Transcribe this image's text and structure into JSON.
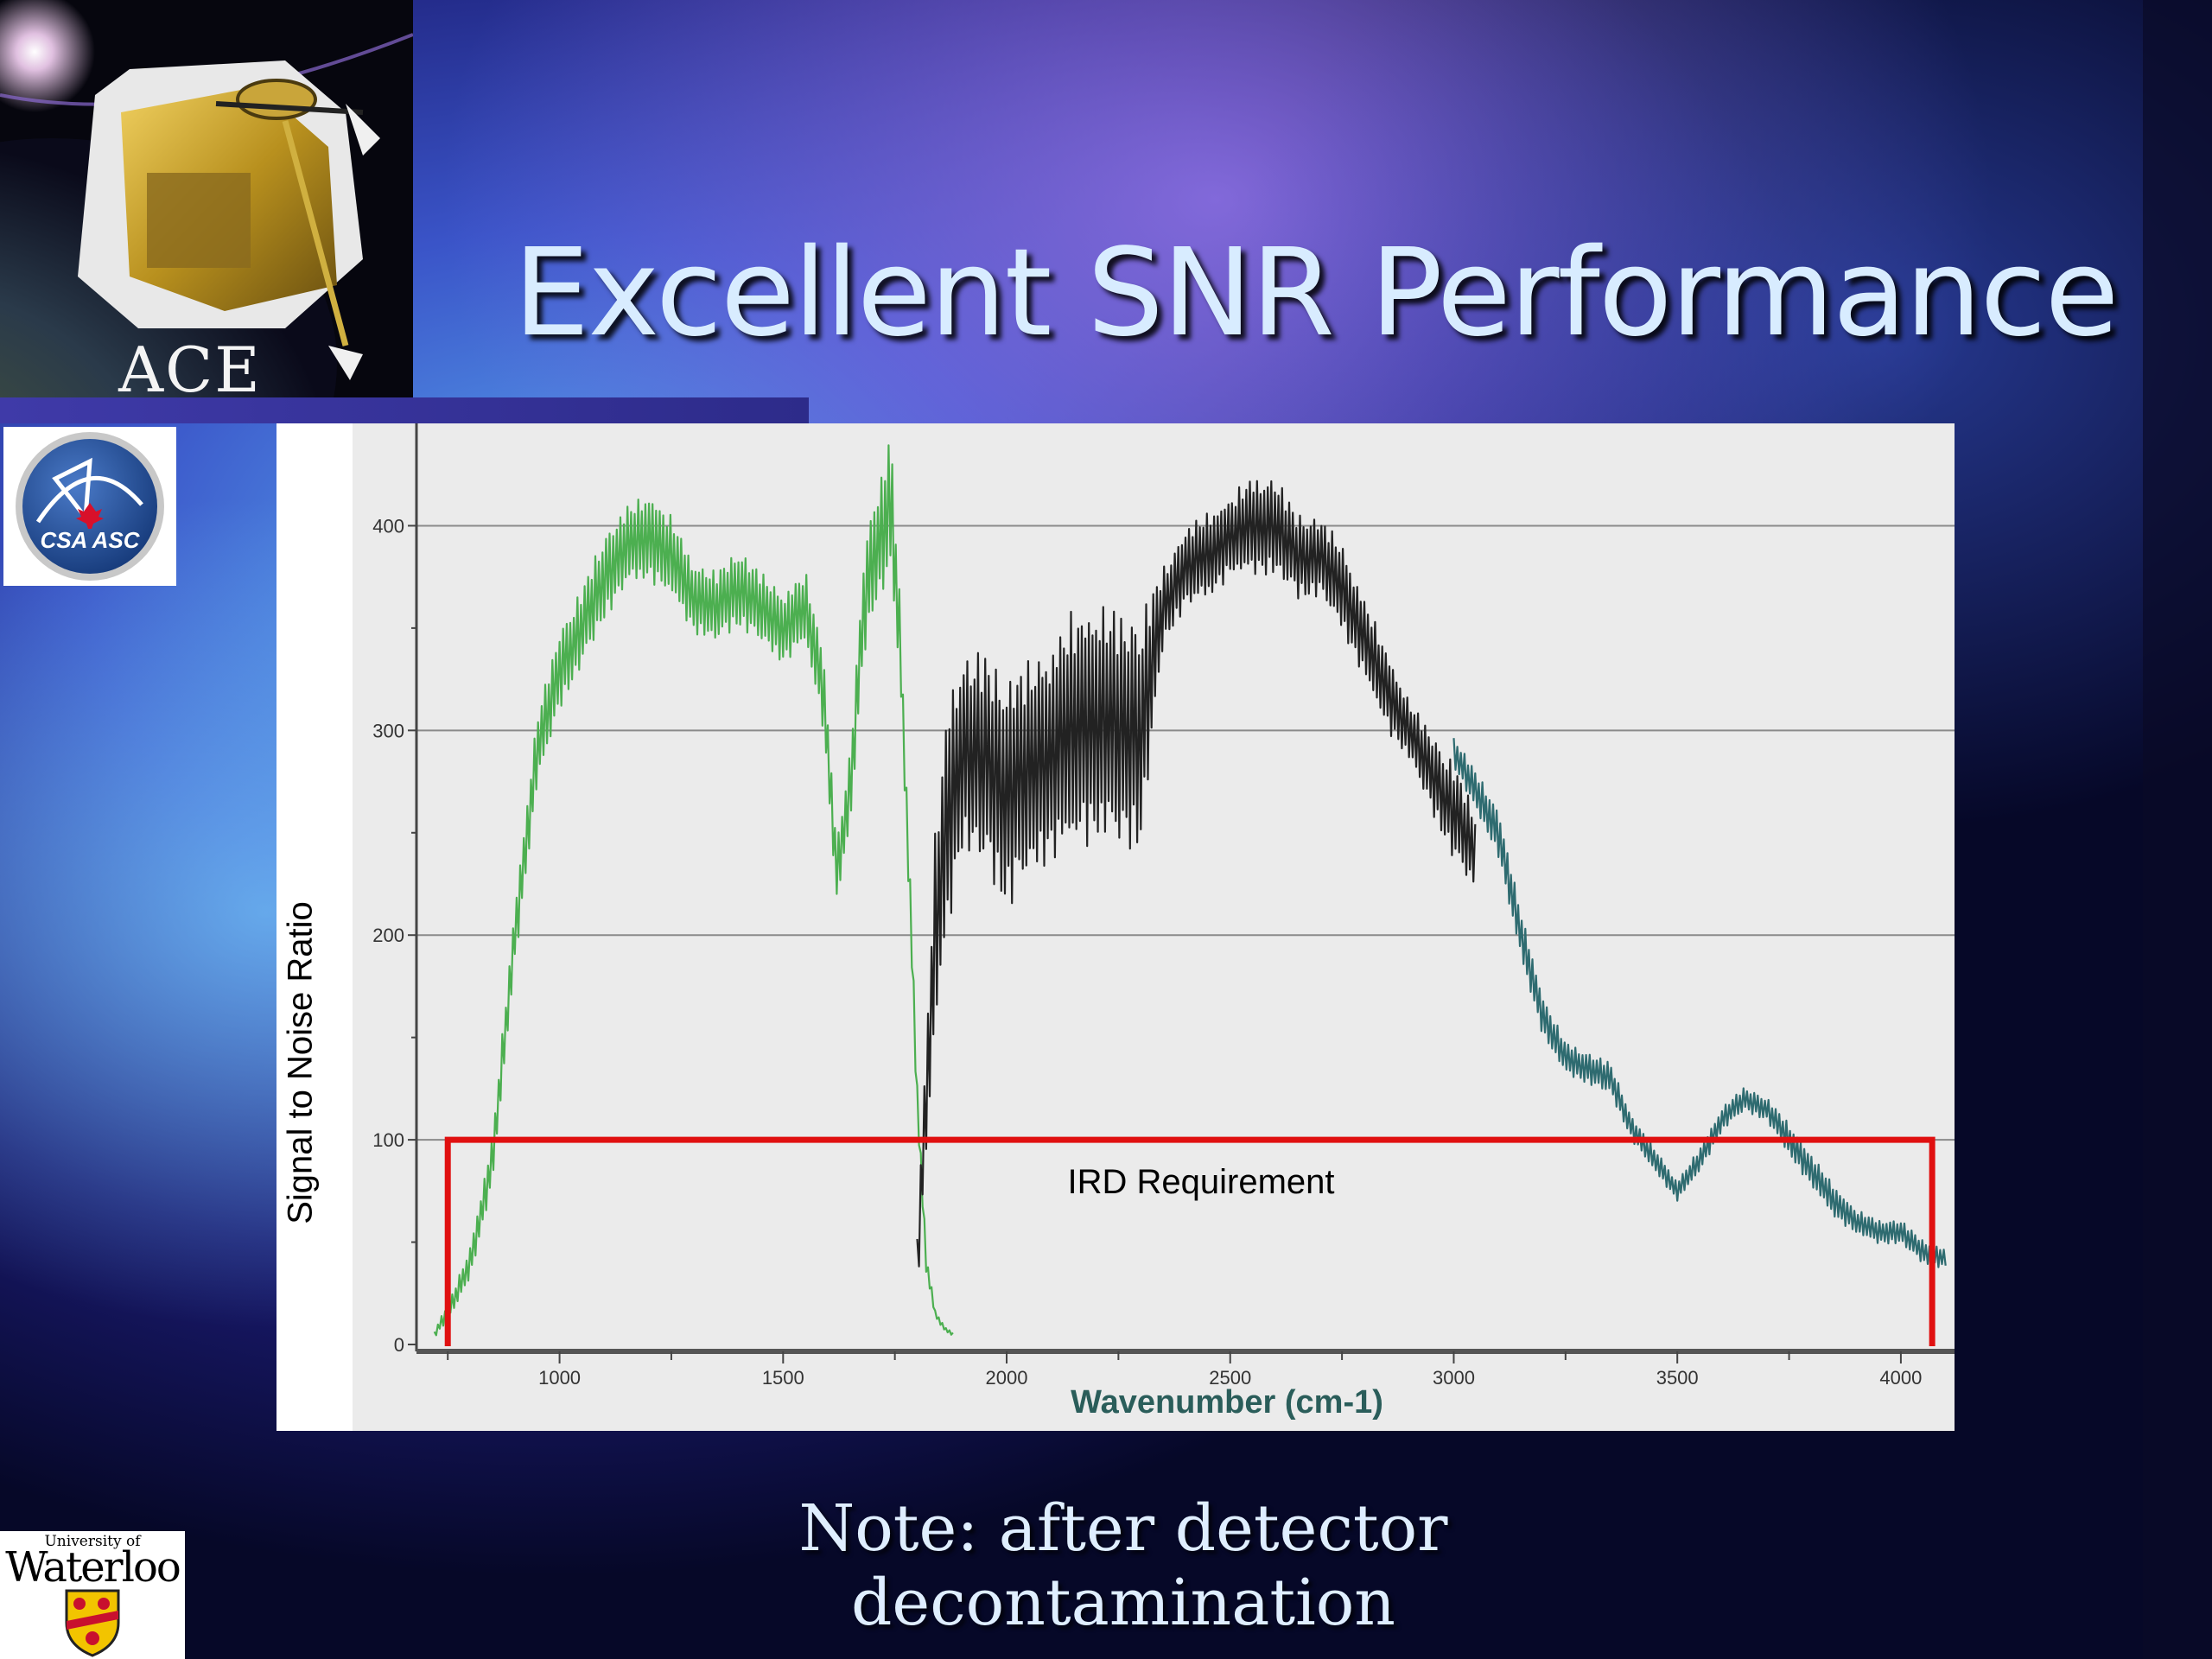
{
  "slide": {
    "title": "Excellent SNR Performance",
    "note": "Note: after detector decontamination"
  },
  "logos": {
    "ace": {
      "text": "ACE",
      "icon": "satellite-instrument-icon"
    },
    "csa": {
      "text": "CSA ASC",
      "icon": "maple-leaf-icon"
    },
    "waterloo": {
      "small_text": "University of",
      "name": "Waterloo",
      "icon": "crest-shield-icon"
    }
  },
  "colors": {
    "green_band": "#4caf50",
    "black_band": "#222222",
    "teal_band": "#2e6b70",
    "requirement": "#e01010",
    "plot_background": "#ebebeb",
    "xlabel": "#2a5d5a"
  },
  "chart_data": {
    "type": "line",
    "title": "",
    "xlabel": "Wavenumber (cm-1)",
    "ylabel": "Signal to Noise Ratio",
    "xlim": [
      680,
      4120
    ],
    "ylim": [
      0,
      450
    ],
    "xticks": [
      1000,
      1500,
      2000,
      2500,
      3000,
      3500,
      4000
    ],
    "yticks": [
      0,
      100,
      200,
      300,
      400
    ],
    "grid": "horizontal",
    "series": [
      {
        "name": "",
        "color": "#4caf50",
        "x": [
          720,
          760,
          800,
          850,
          900,
          950,
          1000,
          1050,
          1100,
          1150,
          1200,
          1250,
          1300,
          1350,
          1400,
          1450,
          1500,
          1550,
          1590,
          1620,
          1650,
          1680,
          1700,
          1720,
          1740,
          1760,
          1780,
          1800,
          1820,
          1840,
          1860,
          1880
        ],
        "y": [
          5,
          20,
          40,
          90,
          200,
          290,
          330,
          350,
          375,
          390,
          395,
          385,
          365,
          360,
          370,
          360,
          350,
          360,
          320,
          230,
          270,
          360,
          385,
          395,
          410,
          350,
          240,
          120,
          40,
          15,
          8,
          5
        ],
        "amplitude": [
          2,
          5,
          8,
          12,
          15,
          18,
          20,
          20,
          22,
          20,
          22,
          20,
          18,
          18,
          20,
          18,
          18,
          18,
          20,
          15,
          20,
          25,
          30,
          30,
          40,
          20,
          15,
          10,
          5,
          2,
          1,
          1
        ]
      },
      {
        "name": "",
        "color": "#222222",
        "x": [
          1800,
          1820,
          1840,
          1870,
          1900,
          1950,
          2000,
          2050,
          2100,
          2150,
          2200,
          2250,
          2300,
          2350,
          2400,
          2450,
          2500,
          2550,
          2600,
          2650,
          2700,
          2750,
          2800,
          2850,
          2900,
          2950,
          3000,
          3050
        ],
        "y": [
          40,
          120,
          200,
          260,
          290,
          285,
          270,
          280,
          290,
          300,
          305,
          300,
          300,
          360,
          380,
          385,
          395,
          400,
          400,
          385,
          385,
          370,
          345,
          320,
          300,
          280,
          260,
          240
        ],
        "amplitude": [
          15,
          30,
          50,
          60,
          50,
          55,
          60,
          55,
          55,
          60,
          60,
          60,
          60,
          20,
          20,
          22,
          20,
          25,
          25,
          22,
          20,
          22,
          20,
          20,
          15,
          20,
          25,
          20
        ]
      },
      {
        "name": "",
        "color": "#2e6b70",
        "x": [
          3000,
          3050,
          3100,
          3150,
          3200,
          3250,
          3300,
          3350,
          3400,
          3450,
          3500,
          3550,
          3600,
          3650,
          3700,
          3750,
          3800,
          3850,
          3900,
          3950,
          4000,
          4050,
          4100
        ],
        "y": [
          290,
          270,
          250,
          200,
          160,
          140,
          135,
          130,
          105,
          90,
          75,
          90,
          110,
          120,
          115,
          100,
          85,
          70,
          60,
          55,
          55,
          45,
          42
        ],
        "amplitude": [
          8,
          10,
          12,
          12,
          10,
          8,
          8,
          8,
          6,
          6,
          5,
          6,
          6,
          6,
          6,
          8,
          8,
          8,
          6,
          6,
          6,
          6,
          5
        ]
      }
    ],
    "annotations": [
      {
        "type": "box",
        "label": "IRD Requirement",
        "color": "#e01010",
        "x": [
          750,
          4070
        ],
        "y": [
          0,
          100
        ]
      }
    ]
  }
}
